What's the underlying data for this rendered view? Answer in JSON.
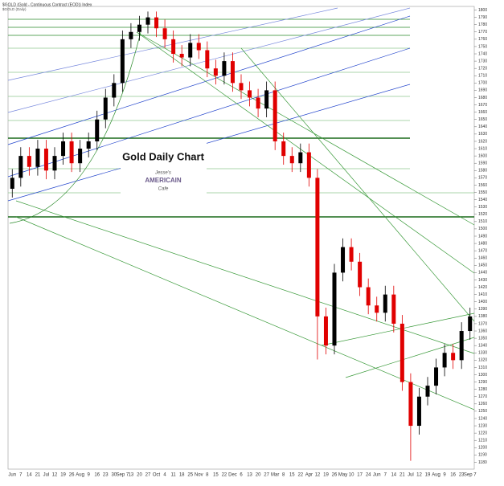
{
  "chart_data": {
    "type": "ohlc",
    "header": "$GOLD (Gold - Continuous Contract (EOD)) Index",
    "subheader": "$GOLD (Daily)",
    "title": "Gold Daily Chart",
    "logo": [
      "Jesse's",
      "AMERICAIN",
      "Cafe"
    ],
    "categories": [
      "Jun",
      "7",
      "14",
      "21",
      "Jul",
      "12",
      "19",
      "26",
      "Aug",
      "9",
      "16",
      "23",
      "30",
      "Sep 7",
      "13",
      "20",
      "27",
      "Oct",
      "4",
      "11",
      "18",
      "25",
      "Nov",
      "8",
      "15",
      "22",
      "Dec",
      "6",
      "13",
      "20",
      "27",
      "Mar",
      "8",
      "15",
      "22",
      "Apr",
      "12",
      "19",
      "26",
      "May",
      "10",
      "17",
      "24",
      "Jun",
      "7",
      "14",
      "21",
      "Jul",
      "12",
      "19",
      "Aug",
      "9",
      "16",
      "23",
      "Sep 7"
    ],
    "open": [
      1555,
      1570,
      1600,
      1585,
      1610,
      1580,
      1600,
      1620,
      1590,
      1610,
      1620,
      1650,
      1680,
      1700,
      1760,
      1770,
      1780,
      1790,
      1775,
      1760,
      1740,
      1735,
      1755,
      1745,
      1720,
      1710,
      1730,
      1700,
      1690,
      1680,
      1665,
      1690,
      1620,
      1600,
      1590,
      1605,
      1570,
      1380,
      1340,
      1440,
      1475,
      1455,
      1420,
      1395,
      1385,
      1410,
      1370,
      1290,
      1230,
      1270,
      1285,
      1310,
      1330,
      1320,
      1360
    ],
    "high": [
      1582,
      1612,
      1612,
      1622,
      1622,
      1612,
      1632,
      1632,
      1622,
      1632,
      1662,
      1692,
      1712,
      1772,
      1782,
      1792,
      1798,
      1798,
      1787,
      1772,
      1752,
      1767,
      1767,
      1757,
      1732,
      1742,
      1742,
      1712,
      1702,
      1692,
      1702,
      1702,
      1632,
      1612,
      1617,
      1617,
      1582,
      1392,
      1452,
      1487,
      1487,
      1467,
      1432,
      1407,
      1422,
      1422,
      1382,
      1302,
      1282,
      1297,
      1322,
      1342,
      1342,
      1372,
      1392
    ],
    "low": [
      1543,
      1558,
      1573,
      1573,
      1568,
      1568,
      1588,
      1578,
      1578,
      1598,
      1608,
      1638,
      1668,
      1688,
      1748,
      1758,
      1768,
      1763,
      1748,
      1728,
      1723,
      1723,
      1733,
      1708,
      1698,
      1698,
      1688,
      1678,
      1668,
      1653,
      1653,
      1608,
      1588,
      1578,
      1578,
      1558,
      1321,
      1328,
      1328,
      1428,
      1443,
      1408,
      1383,
      1373,
      1373,
      1358,
      1278,
      1182,
      1218,
      1258,
      1273,
      1298,
      1308,
      1308,
      1348
    ],
    "close": [
      1570,
      1600,
      1585,
      1610,
      1580,
      1600,
      1620,
      1590,
      1610,
      1620,
      1650,
      1680,
      1700,
      1760,
      1770,
      1780,
      1790,
      1775,
      1760,
      1740,
      1735,
      1755,
      1745,
      1720,
      1710,
      1730,
      1700,
      1690,
      1680,
      1665,
      1690,
      1620,
      1600,
      1590,
      1605,
      1570,
      1380,
      1340,
      1440,
      1475,
      1455,
      1420,
      1395,
      1385,
      1410,
      1370,
      1290,
      1230,
      1270,
      1285,
      1310,
      1330,
      1320,
      1360,
      1380
    ],
    "up_color": "#000000",
    "down_color": "#e00000",
    "ylim": [
      1175,
      1805
    ],
    "yticks": [
      1180,
      1190,
      1200,
      1210,
      1220,
      1230,
      1240,
      1250,
      1260,
      1270,
      1280,
      1290,
      1300,
      1310,
      1320,
      1330,
      1340,
      1350,
      1360,
      1370,
      1380,
      1390,
      1400,
      1410,
      1420,
      1430,
      1440,
      1450,
      1460,
      1470,
      1480,
      1490,
      1500,
      1510,
      1520,
      1530,
      1540,
      1550,
      1560,
      1570,
      1580,
      1590,
      1600,
      1610,
      1620,
      1630,
      1640,
      1650,
      1660,
      1670,
      1680,
      1690,
      1700,
      1710,
      1720,
      1730,
      1740,
      1750,
      1760,
      1770,
      1780,
      1790,
      1800
    ]
  }
}
